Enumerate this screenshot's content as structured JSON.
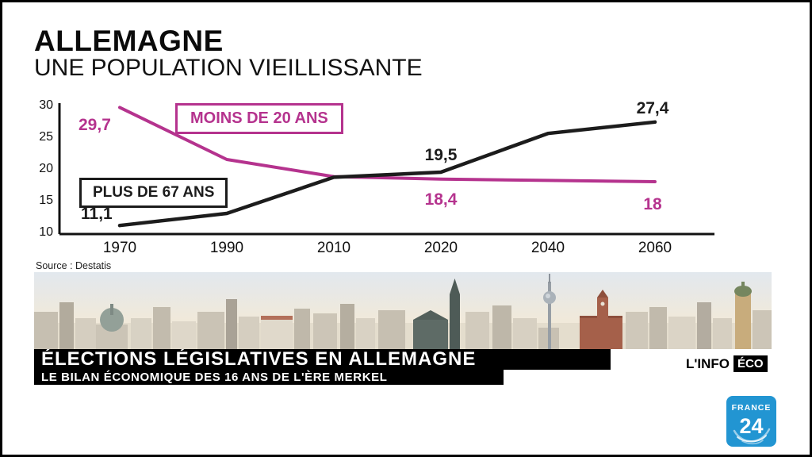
{
  "chart_data": {
    "type": "line",
    "title": "ALLEMAGNE",
    "subtitle": "UNE POPULATION VIEILLISSANTE",
    "source": "Source : Destatis",
    "categories": [
      "1970",
      "1990",
      "2010",
      "2020",
      "2040",
      "2060"
    ],
    "yticks": [
      "30",
      "25",
      "20",
      "15",
      "10"
    ],
    "ylim": [
      10,
      30
    ],
    "grid": false,
    "legend_position": "inline-boxes",
    "series": [
      {
        "name": "MOINS DE 20 ANS",
        "color": "#b5338e",
        "values": [
          29.7,
          21.5,
          18.8,
          18.4,
          18.2,
          18
        ],
        "point_labels": {
          "start": "29,7",
          "y2020": "18,4",
          "end": "18"
        }
      },
      {
        "name": "PLUS DE 67 ANS",
        "color": "#1c1c1c",
        "values": [
          11.1,
          13,
          18.7,
          19.5,
          25.6,
          27.4
        ],
        "point_labels": {
          "start": "11,1",
          "y2020": "19,5",
          "end": "27,4"
        }
      }
    ]
  },
  "banner": {
    "title": "ÉLECTIONS LÉGISLATIVES EN ALLEMAGNE",
    "subtitle": "LE BILAN ÉCONOMIQUE DES 16 ANS DE L'ÈRE MERKEL",
    "topic_prefix": "L'INFO",
    "topic_highlight": "ÉCO"
  },
  "logo": {
    "brand_top": "FRANCE",
    "brand_number": "24",
    "color": "#2295d2"
  }
}
